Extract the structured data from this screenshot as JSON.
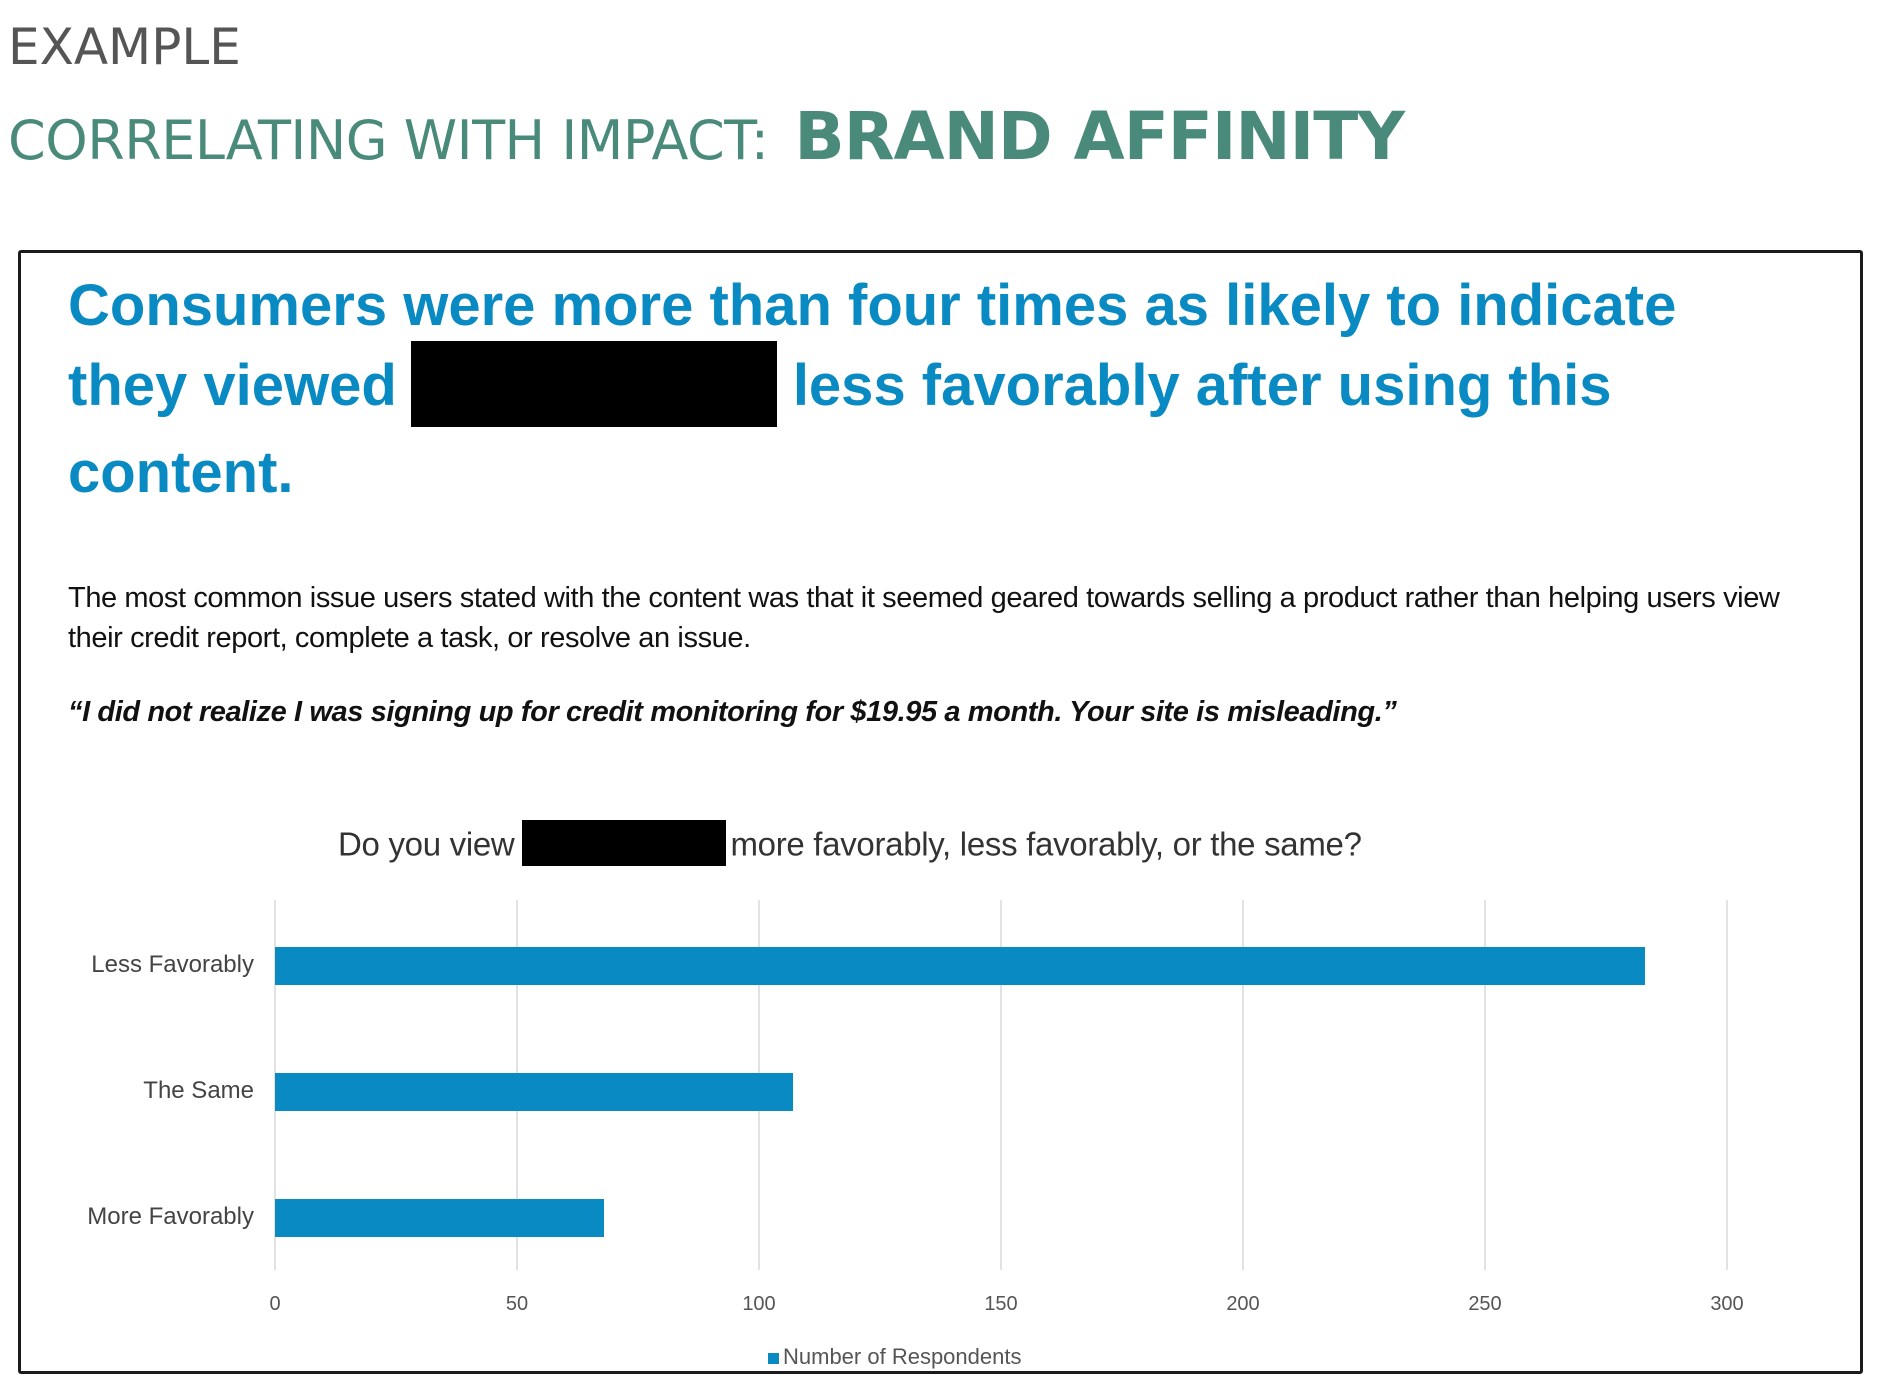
{
  "header": {
    "eyebrow": "EXAMPLE",
    "section_lead": "CORRELATING WITH IMPACT:",
    "section_topic": "BRAND AFFINITY"
  },
  "slide": {
    "headline_part1": "Consumers were more than four times as likely to indicate they viewed",
    "headline_redacted": "[redacted]",
    "headline_part2": "less favorably after using this content.",
    "body": "The most common issue users stated with the content was that it seemed geared towards selling a product rather than helping users view their credit report, complete a task, or resolve an issue.",
    "quote": "“I did not realize I was signing up for credit monitoring for $19.95 a month. Your site is misleading.”"
  },
  "colors": {
    "teal": "#4a8a7b",
    "headline_blue": "#0a8ac2",
    "bar_blue": "#0a8ac2",
    "gridline": "#e2e2e2"
  },
  "chart_data": {
    "type": "bar",
    "orientation": "horizontal",
    "title_part1": "Do you view",
    "title_redacted": "[redacted]",
    "title_part2": "more favorably, less favorably, or the same?",
    "title": "Do you view [redacted] more favorably, less favorably, or the same?",
    "categories": [
      "Less Favorably",
      "The Same",
      "More Favorably"
    ],
    "series": [
      {
        "name": "Number of Respondents",
        "values": [
          283,
          107,
          68
        ]
      }
    ],
    "xlabel": "",
    "ylabel": "",
    "xlim": [
      0,
      300
    ],
    "xticks": [
      "0",
      "50",
      "100",
      "150",
      "200",
      "250",
      "300"
    ],
    "grid": "vertical",
    "legend": {
      "position": "bottom",
      "entries": [
        "Number of Respondents"
      ]
    }
  }
}
